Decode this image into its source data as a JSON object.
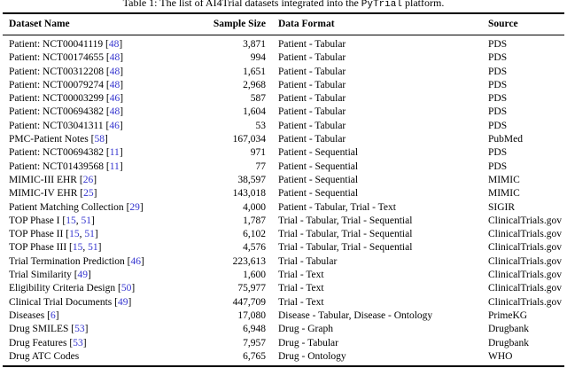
{
  "title": {
    "prefix": "Table 1: The list of AI4Trial datasets integrated into the ",
    "platform": "PyTrial",
    "suffix": " platform."
  },
  "table": {
    "citation_color": "#3535cf",
    "text_color": "#000000",
    "columns": [
      "Dataset Name",
      "Sample Size",
      "Data Format",
      "Source"
    ],
    "rows": [
      {
        "name": "Patient: NCT00041119",
        "cites": [
          "48"
        ],
        "sample_size": "3,871",
        "data_format": "Patient - Tabular",
        "source": "PDS"
      },
      {
        "name": "Patient: NCT00174655",
        "cites": [
          "48"
        ],
        "sample_size": "994",
        "data_format": "Patient - Tabular",
        "source": "PDS"
      },
      {
        "name": "Patient: NCT00312208",
        "cites": [
          "48"
        ],
        "sample_size": "1,651",
        "data_format": "Patient - Tabular",
        "source": "PDS"
      },
      {
        "name": "Patient: NCT00079274",
        "cites": [
          "48"
        ],
        "sample_size": "2,968",
        "data_format": "Patient - Tabular",
        "source": "PDS"
      },
      {
        "name": "Patient: NCT00003299",
        "cites": [
          "46"
        ],
        "sample_size": "587",
        "data_format": "Patient - Tabular",
        "source": "PDS"
      },
      {
        "name": "Patient: NCT00694382",
        "cites": [
          "48"
        ],
        "sample_size": "1,604",
        "data_format": "Patient - Tabular",
        "source": "PDS"
      },
      {
        "name": "Patient: NCT03041311",
        "cites": [
          "46"
        ],
        "sample_size": "53",
        "data_format": "Patient - Tabular",
        "source": "PDS"
      },
      {
        "name": "PMC-Patient Notes",
        "cites": [
          "58"
        ],
        "sample_size": "167,034",
        "data_format": "Patient - Tabular",
        "source": "PubMed"
      },
      {
        "name": "Patient: NCT00694382",
        "cites": [
          "11"
        ],
        "sample_size": "971",
        "data_format": "Patient - Sequential",
        "source": "PDS"
      },
      {
        "name": "Patient: NCT01439568",
        "cites": [
          "11"
        ],
        "sample_size": "77",
        "data_format": "Patient - Sequential",
        "source": "PDS"
      },
      {
        "name": "MIMIC-III EHR",
        "cites": [
          "26"
        ],
        "sample_size": "38,597",
        "data_format": "Patient - Sequential",
        "source": "MIMIC"
      },
      {
        "name": "MIMIC-IV EHR",
        "cites": [
          "25"
        ],
        "sample_size": "143,018",
        "data_format": "Patient - Sequential",
        "source": "MIMIC"
      },
      {
        "name": "Patient Matching Collection",
        "cites": [
          "29"
        ],
        "sample_size": "4,000",
        "data_format": "Patient - Tabular, Trial - Text",
        "source": "SIGIR"
      },
      {
        "name": "TOP Phase I",
        "cites": [
          "15",
          "51"
        ],
        "sample_size": "1,787",
        "data_format": "Trial - Tabular, Trial - Sequential",
        "source": "ClinicalTrials.gov"
      },
      {
        "name": "TOP Phase II",
        "cites": [
          "15",
          "51"
        ],
        "sample_size": "6,102",
        "data_format": "Trial - Tabular, Trial - Sequential",
        "source": "ClinicalTrials.gov"
      },
      {
        "name": "TOP Phase III",
        "cites": [
          "15",
          "51"
        ],
        "sample_size": "4,576",
        "data_format": "Trial - Tabular, Trial - Sequential",
        "source": "ClinicalTrials.gov"
      },
      {
        "name": "Trial Termination Prediction",
        "cites": [
          "46"
        ],
        "sample_size": "223,613",
        "data_format": "Trial - Tabular",
        "source": "ClinicalTrials.gov"
      },
      {
        "name": "Trial Similarity",
        "cites": [
          "49"
        ],
        "sample_size": "1,600",
        "data_format": "Trial - Text",
        "source": "ClinicalTrials.gov"
      },
      {
        "name": "Eligibility Criteria Design",
        "cites": [
          "50"
        ],
        "sample_size": "75,977",
        "data_format": "Trial - Text",
        "source": "ClinicalTrials.gov"
      },
      {
        "name": "Clinical Trial Documents",
        "cites": [
          "49"
        ],
        "sample_size": "447,709",
        "data_format": "Trial - Text",
        "source": "ClinicalTrials.gov"
      },
      {
        "name": "Diseases",
        "cites": [
          "6"
        ],
        "sample_size": "17,080",
        "data_format": "Disease - Tabular, Disease - Ontology",
        "source": "PrimeKG"
      },
      {
        "name": "Drug SMILES",
        "cites": [
          "53"
        ],
        "sample_size": "6,948",
        "data_format": "Drug - Graph",
        "source": "Drugbank"
      },
      {
        "name": "Drug Features",
        "cites": [
          "53"
        ],
        "sample_size": "7,957",
        "data_format": "Drug - Tabular",
        "source": "Drugbank"
      },
      {
        "name": "Drug ATC Codes",
        "cites": [],
        "sample_size": "6,765",
        "data_format": "Drug - Ontology",
        "source": "WHO"
      }
    ]
  }
}
